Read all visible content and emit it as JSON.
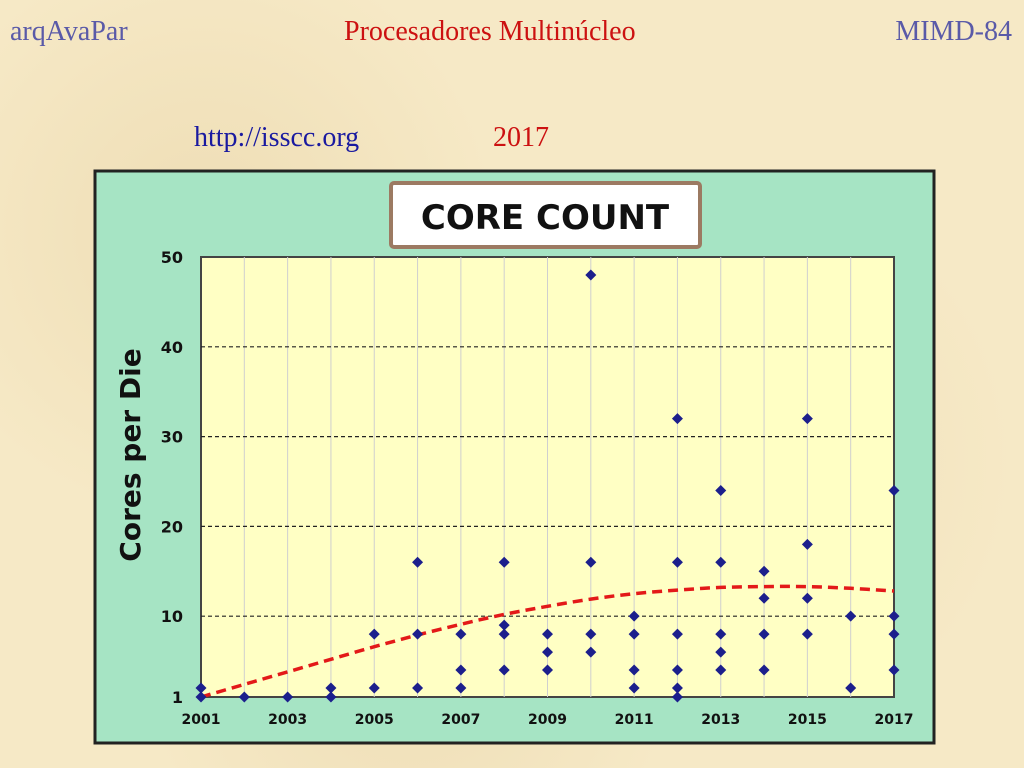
{
  "header": {
    "left": "arqAvaPar",
    "center": "Procesadores Multinúcleo",
    "right": "MIMD-84"
  },
  "subheader": {
    "url": "http://isscc.org",
    "year": "2017"
  },
  "chart_data": {
    "type": "scatter",
    "title": "CORE COUNT",
    "xlabel": "",
    "ylabel": "Cores per Die",
    "xlim": [
      2001,
      2017
    ],
    "ylim": [
      1,
      50
    ],
    "x_ticks": [
      2001,
      2003,
      2005,
      2007,
      2009,
      2011,
      2013,
      2015,
      2017
    ],
    "y_ticks": [
      1,
      10,
      20,
      30,
      40,
      50
    ],
    "grid": "horizontal dashed at 10, 20, 30, 40; vertical at each year",
    "legend": "none",
    "colors": {
      "outer_background": "#a6e4c4",
      "plot_background": "#ffffc4",
      "points": "#1c1f8c",
      "trend": "#e31919"
    },
    "points": [
      {
        "x": 2001,
        "y": 2
      },
      {
        "x": 2001,
        "y": 1
      },
      {
        "x": 2002,
        "y": 1
      },
      {
        "x": 2003,
        "y": 1
      },
      {
        "x": 2004,
        "y": 2
      },
      {
        "x": 2004,
        "y": 1
      },
      {
        "x": 2005,
        "y": 8
      },
      {
        "x": 2005,
        "y": 2
      },
      {
        "x": 2006,
        "y": 16
      },
      {
        "x": 2006,
        "y": 8
      },
      {
        "x": 2006,
        "y": 2
      },
      {
        "x": 2007,
        "y": 8
      },
      {
        "x": 2007,
        "y": 4
      },
      {
        "x": 2007,
        "y": 2
      },
      {
        "x": 2008,
        "y": 16
      },
      {
        "x": 2008,
        "y": 9
      },
      {
        "x": 2008,
        "y": 8
      },
      {
        "x": 2008,
        "y": 4
      },
      {
        "x": 2009,
        "y": 8
      },
      {
        "x": 2009,
        "y": 6
      },
      {
        "x": 2009,
        "y": 4
      },
      {
        "x": 2010,
        "y": 48
      },
      {
        "x": 2010,
        "y": 16
      },
      {
        "x": 2010,
        "y": 8
      },
      {
        "x": 2010,
        "y": 6
      },
      {
        "x": 2011,
        "y": 10
      },
      {
        "x": 2011,
        "y": 8
      },
      {
        "x": 2011,
        "y": 4
      },
      {
        "x": 2011,
        "y": 2
      },
      {
        "x": 2012,
        "y": 32
      },
      {
        "x": 2012,
        "y": 16
      },
      {
        "x": 2012,
        "y": 8
      },
      {
        "x": 2012,
        "y": 4
      },
      {
        "x": 2012,
        "y": 2
      },
      {
        "x": 2012,
        "y": 1
      },
      {
        "x": 2013,
        "y": 24
      },
      {
        "x": 2013,
        "y": 16
      },
      {
        "x": 2013,
        "y": 8
      },
      {
        "x": 2013,
        "y": 6
      },
      {
        "x": 2013,
        "y": 4
      },
      {
        "x": 2014,
        "y": 15
      },
      {
        "x": 2014,
        "y": 12
      },
      {
        "x": 2014,
        "y": 8
      },
      {
        "x": 2014,
        "y": 4
      },
      {
        "x": 2015,
        "y": 32
      },
      {
        "x": 2015,
        "y": 18
      },
      {
        "x": 2015,
        "y": 12
      },
      {
        "x": 2015,
        "y": 8
      },
      {
        "x": 2016,
        "y": 10
      },
      {
        "x": 2016,
        "y": 2
      },
      {
        "x": 2017,
        "y": 24
      },
      {
        "x": 2017,
        "y": 10
      },
      {
        "x": 2017,
        "y": 8
      },
      {
        "x": 2017,
        "y": 4
      }
    ],
    "trend": [
      {
        "x": 2001,
        "y": 1.0
      },
      {
        "x": 2002,
        "y": 2.4
      },
      {
        "x": 2003,
        "y": 3.8
      },
      {
        "x": 2004,
        "y": 5.2
      },
      {
        "x": 2005,
        "y": 6.6
      },
      {
        "x": 2006,
        "y": 7.9
      },
      {
        "x": 2007,
        "y": 9.1
      },
      {
        "x": 2008,
        "y": 10.2
      },
      {
        "x": 2009,
        "y": 11.1
      },
      {
        "x": 2010,
        "y": 11.9
      },
      {
        "x": 2011,
        "y": 12.5
      },
      {
        "x": 2012,
        "y": 12.9
      },
      {
        "x": 2013,
        "y": 13.2
      },
      {
        "x": 2014,
        "y": 13.3
      },
      {
        "x": 2015,
        "y": 13.3
      },
      {
        "x": 2016,
        "y": 13.1
      },
      {
        "x": 2017,
        "y": 12.8
      }
    ]
  }
}
